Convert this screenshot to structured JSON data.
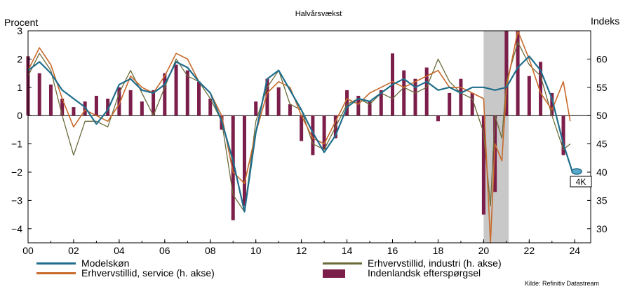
{
  "title": "Halvårsvækst",
  "left_axis_unit": "Procent",
  "right_axis_unit": "Indeks",
  "source": "Kilde: Refinitiv Datastream",
  "end_label": "4K",
  "colors": {
    "modelskon": "#1f6e8c",
    "industri": "#6b6b3a",
    "service": "#c8692a",
    "demand": "#7b1e4a",
    "shade": "#c8c8c8"
  },
  "legend": [
    {
      "key": "modelskon",
      "label": "Modelskøn",
      "kind": "line"
    },
    {
      "key": "industri",
      "label": "Erhvervstillid, industri (h. akse)",
      "kind": "line"
    },
    {
      "key": "service",
      "label": "Erhvervstillid, service (h. akse)",
      "kind": "line"
    },
    {
      "key": "demand",
      "label": "Indenlandsk efterspørgsel",
      "kind": "bar"
    }
  ],
  "chart_data": {
    "type": "line",
    "x_ticks": [
      "00",
      "02",
      "04",
      "06",
      "08",
      "10",
      "12",
      "14",
      "16",
      "18",
      "20",
      "22",
      "24"
    ],
    "xlim": [
      2000,
      2024.7
    ],
    "left_axis": {
      "label": "Procent",
      "ylim": [
        -4.5,
        3
      ],
      "ticks": [
        "3",
        "2",
        "1",
        "0",
        "-1",
        "-2",
        "-3",
        "-4"
      ]
    },
    "right_axis": {
      "label": "Indeks",
      "ylim": [
        27.5,
        65
      ],
      "ticks": [
        "60",
        "55",
        "50",
        "45",
        "40",
        "35",
        "30"
      ]
    },
    "shaded_period": [
      2020.0,
      2021.1
    ],
    "series": [
      {
        "name": "Modelskøn",
        "axis": "left",
        "x": [
          2000.0,
          2000.5,
          2001.0,
          2001.5,
          2002.0,
          2002.5,
          2003.0,
          2003.5,
          2004.0,
          2004.5,
          2005.0,
          2005.5,
          2006.0,
          2006.5,
          2007.0,
          2007.5,
          2008.0,
          2008.5,
          2009.0,
          2009.5,
          2010.0,
          2010.5,
          2011.0,
          2011.5,
          2012.0,
          2012.5,
          2013.0,
          2013.5,
          2014.0,
          2014.5,
          2015.0,
          2015.5,
          2016.0,
          2016.5,
          2017.0,
          2017.5,
          2018.0,
          2018.5,
          2019.0,
          2019.5,
          2020.0,
          2020.5,
          2021.0,
          2021.5,
          2022.0,
          2022.5,
          2023.0,
          2023.5,
          2023.9
        ],
        "y": [
          1.6,
          1.9,
          1.5,
          0.9,
          0.6,
          0.3,
          -0.3,
          0.2,
          1.1,
          1.3,
          0.9,
          0.8,
          1.1,
          1.9,
          1.7,
          1.2,
          0.8,
          -0.2,
          -1.6,
          -3.4,
          -0.6,
          1.3,
          1.6,
          0.9,
          0.2,
          -0.6,
          -1.3,
          -0.7,
          0.3,
          0.6,
          0.5,
          0.8,
          1.1,
          1.3,
          1.0,
          1.2,
          0.9,
          1.0,
          0.8,
          1.0,
          1.0,
          0.9,
          1.0,
          1.7,
          2.1,
          1.6,
          0.6,
          -1.0,
          -2.0
        ]
      },
      {
        "name": "Erhvervstillid, industri (h. akse)",
        "axis": "right",
        "x": [
          2000.0,
          2000.5,
          2001.0,
          2001.5,
          2002.0,
          2002.5,
          2003.0,
          2003.5,
          2004.0,
          2004.5,
          2005.0,
          2005.5,
          2006.0,
          2006.5,
          2007.0,
          2007.5,
          2008.0,
          2008.5,
          2009.0,
          2009.5,
          2010.0,
          2010.5,
          2011.0,
          2011.5,
          2012.0,
          2012.5,
          2013.0,
          2013.5,
          2014.0,
          2014.5,
          2015.0,
          2015.5,
          2016.0,
          2016.5,
          2017.0,
          2017.5,
          2018.0,
          2018.5,
          2019.0,
          2019.5,
          2020.0,
          2020.3,
          2020.5,
          2020.8,
          2021.0,
          2021.5,
          2022.0,
          2022.5,
          2023.0,
          2023.5,
          2023.8
        ],
        "y": [
          57,
          61,
          58,
          50,
          43,
          49,
          49,
          48,
          54,
          58,
          54,
          50,
          55,
          60,
          57,
          56,
          53,
          49,
          36,
          33,
          49,
          55,
          58,
          52,
          51,
          45,
          44,
          48,
          52,
          53,
          52,
          54,
          53,
          55,
          54,
          55,
          60,
          56,
          54,
          53,
          47,
          34,
          50,
          46,
          56,
          63,
          59,
          57,
          50,
          44,
          45
        ]
      },
      {
        "name": "Erhvervstillid, service (h. akse)",
        "axis": "right",
        "x": [
          2000.0,
          2000.5,
          2001.0,
          2001.5,
          2002.0,
          2002.5,
          2003.0,
          2003.5,
          2004.0,
          2004.5,
          2005.0,
          2005.5,
          2006.0,
          2006.5,
          2007.0,
          2007.5,
          2008.0,
          2008.5,
          2009.0,
          2009.5,
          2010.0,
          2010.5,
          2011.0,
          2011.5,
          2012.0,
          2012.5,
          2013.0,
          2013.5,
          2014.0,
          2014.5,
          2015.0,
          2015.5,
          2016.0,
          2016.5,
          2017.0,
          2017.5,
          2018.0,
          2018.5,
          2019.0,
          2019.5,
          2020.0,
          2020.3,
          2020.5,
          2020.8,
          2021.0,
          2021.5,
          2022.0,
          2022.5,
          2023.0,
          2023.5,
          2023.8
        ],
        "y": [
          58,
          62,
          59,
          53,
          48,
          51,
          50,
          49,
          52,
          57,
          55,
          54,
          57,
          61,
          60,
          56,
          54,
          50,
          40,
          38,
          47,
          54,
          56,
          55,
          50,
          46,
          45,
          49,
          53,
          52,
          54,
          55,
          56,
          55,
          56,
          57,
          58,
          55,
          55,
          54,
          53,
          27,
          45,
          42,
          55,
          65,
          60,
          54,
          51,
          56,
          49
        ]
      },
      {
        "name": "Indenlandsk efterspørgsel",
        "axis": "left",
        "kind": "bar",
        "x": [
          2000.0,
          2000.5,
          2001.0,
          2001.5,
          2002.0,
          2002.5,
          2003.0,
          2003.5,
          2004.0,
          2004.5,
          2005.0,
          2005.5,
          2006.0,
          2006.5,
          2007.0,
          2007.5,
          2008.0,
          2008.5,
          2009.0,
          2009.5,
          2010.0,
          2010.5,
          2011.0,
          2011.5,
          2012.0,
          2012.5,
          2013.0,
          2013.5,
          2014.0,
          2014.5,
          2015.0,
          2015.5,
          2016.0,
          2016.5,
          2017.0,
          2017.5,
          2018.0,
          2018.5,
          2019.0,
          2019.5,
          2020.0,
          2020.5,
          2021.0,
          2021.5,
          2022.0,
          2022.5,
          2023.0,
          2023.5
        ],
        "y": [
          2.1,
          1.5,
          1.1,
          0.6,
          0.3,
          0.5,
          0.7,
          0.6,
          1.0,
          0.9,
          0.5,
          0.9,
          1.5,
          1.8,
          1.6,
          1.2,
          0.6,
          -0.5,
          -3.7,
          -3.2,
          0.5,
          1.3,
          1.0,
          0.4,
          -0.9,
          -1.4,
          -1.2,
          -0.8,
          0.9,
          0.7,
          0.5,
          0.9,
          2.2,
          1.6,
          1.3,
          1.7,
          -0.2,
          0.8,
          1.3,
          0.8,
          -3.5,
          -2.7,
          3.3,
          3.3,
          1.4,
          1.9,
          0.8,
          -1.4
        ]
      }
    ]
  }
}
